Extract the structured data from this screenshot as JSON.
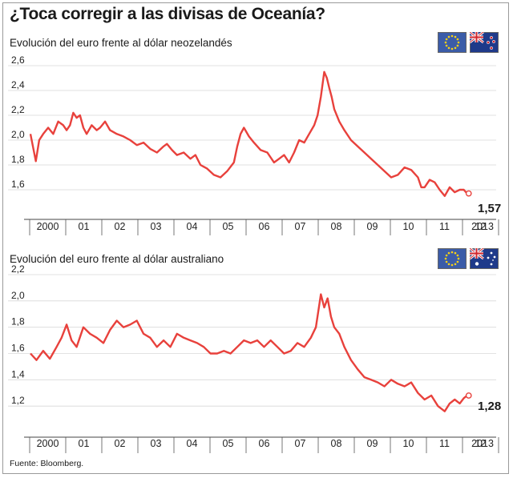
{
  "title": "¿Toca corregir a las divisas de Oceanía?",
  "source": "Fuente: Bloomberg.",
  "colors": {
    "line": "#e8413c",
    "frame": "#9a9a9a",
    "tick": "#444444"
  },
  "chart_data": [
    {
      "type": "line",
      "title": "Evolución del euro frente al dólar neozelandés",
      "flags": [
        "eu-flag-icon",
        "new-zealand-flag-icon"
      ],
      "x_ticks": [
        "2000",
        "01",
        "02",
        "03",
        "04",
        "05",
        "06",
        "07",
        "08",
        "09",
        "10",
        "11",
        "12",
        "2013"
      ],
      "y_ticks": [
        "2,6",
        "2,4",
        "2,2",
        "2,0",
        "1,8",
        "1,6"
      ],
      "ylim": [
        1.4,
        2.6
      ],
      "xlim": [
        1999.92,
        2013.0
      ],
      "end_value": "1,57",
      "series": [
        {
          "x": [
            1999.92,
            2000.08,
            2000.18,
            2000.3,
            2000.45,
            2000.6,
            2000.75,
            2000.9,
            2001.0,
            2001.1,
            2001.2,
            2001.3,
            2001.4,
            2001.5,
            2001.6,
            2001.75,
            2001.9,
            2002.0,
            2002.15,
            2002.3,
            2002.5,
            2002.7,
            2002.9,
            2003.1,
            2003.3,
            2003.5,
            2003.7,
            2003.9,
            2004.0,
            2004.15,
            2004.3,
            2004.5,
            2004.7,
            2004.85,
            2005.0,
            2005.2,
            2005.4,
            2005.6,
            2005.8,
            2006.0,
            2006.1,
            2006.2,
            2006.3,
            2006.45,
            2006.6,
            2006.8,
            2007.0,
            2007.2,
            2007.35,
            2007.5,
            2007.65,
            2007.8,
            2007.95,
            2008.1,
            2008.25,
            2008.4,
            2008.5,
            2008.6,
            2008.7,
            2008.78,
            2008.85,
            2008.92,
            2009.0,
            2009.15,
            2009.3,
            2009.5,
            2009.7,
            2009.9,
            2010.1,
            2010.3,
            2010.5,
            2010.7,
            2010.9,
            2011.1,
            2011.3,
            2011.5,
            2011.6,
            2011.7,
            2011.85,
            2012.0,
            2012.15,
            2012.3,
            2012.45,
            2012.6,
            2012.75,
            2012.87,
            2012.97
          ],
          "y": [
            2.05,
            1.83,
            2.0,
            2.05,
            2.1,
            2.05,
            2.15,
            2.12,
            2.08,
            2.12,
            2.22,
            2.18,
            2.2,
            2.1,
            2.05,
            2.12,
            2.08,
            2.1,
            2.15,
            2.08,
            2.05,
            2.03,
            2.0,
            1.96,
            1.98,
            1.93,
            1.9,
            1.95,
            1.97,
            1.92,
            1.88,
            1.9,
            1.85,
            1.88,
            1.8,
            1.77,
            1.72,
            1.7,
            1.75,
            1.82,
            1.95,
            2.05,
            2.1,
            2.03,
            1.98,
            1.92,
            1.9,
            1.82,
            1.85,
            1.88,
            1.82,
            1.9,
            2.0,
            1.98,
            2.05,
            2.12,
            2.2,
            2.35,
            2.55,
            2.5,
            2.42,
            2.35,
            2.25,
            2.15,
            2.08,
            2.0,
            1.95,
            1.9,
            1.85,
            1.8,
            1.75,
            1.7,
            1.72,
            1.78,
            1.76,
            1.7,
            1.62,
            1.62,
            1.68,
            1.66,
            1.6,
            1.55,
            1.62,
            1.58,
            1.6,
            1.6,
            1.57
          ]
        }
      ]
    },
    {
      "type": "line",
      "title": "Evolución del euro frente al dólar australiano",
      "flags": [
        "eu-flag-icon",
        "australia-flag-icon"
      ],
      "x_ticks": [
        "2000",
        "01",
        "02",
        "03",
        "04",
        "05",
        "06",
        "07",
        "08",
        "09",
        "10",
        "11",
        "12",
        "2013"
      ],
      "y_ticks": [
        "2,2",
        "2,0",
        "1,8",
        "1,6",
        "1,4",
        "1,2"
      ],
      "ylim": [
        1.0,
        2.2
      ],
      "xlim": [
        1999.92,
        2013.0
      ],
      "end_value": "1,28",
      "series": [
        {
          "x": [
            1999.92,
            2000.1,
            2000.3,
            2000.5,
            2000.7,
            2000.85,
            2001.0,
            2001.15,
            2001.3,
            2001.5,
            2001.7,
            2001.9,
            2002.1,
            2002.3,
            2002.5,
            2002.7,
            2002.9,
            2003.1,
            2003.3,
            2003.5,
            2003.7,
            2003.9,
            2004.1,
            2004.3,
            2004.5,
            2004.7,
            2004.9,
            2005.1,
            2005.3,
            2005.5,
            2005.7,
            2005.9,
            2006.1,
            2006.3,
            2006.5,
            2006.7,
            2006.9,
            2007.1,
            2007.3,
            2007.5,
            2007.7,
            2007.9,
            2008.1,
            2008.3,
            2008.45,
            2008.6,
            2008.7,
            2008.8,
            2008.9,
            2009.0,
            2009.15,
            2009.3,
            2009.5,
            2009.7,
            2009.9,
            2010.1,
            2010.3,
            2010.5,
            2010.7,
            2010.9,
            2011.1,
            2011.3,
            2011.5,
            2011.7,
            2011.9,
            2012.1,
            2012.3,
            2012.45,
            2012.6,
            2012.75,
            2012.87,
            2012.97
          ],
          "y": [
            1.6,
            1.55,
            1.62,
            1.56,
            1.65,
            1.72,
            1.82,
            1.7,
            1.65,
            1.8,
            1.75,
            1.72,
            1.68,
            1.78,
            1.85,
            1.8,
            1.82,
            1.85,
            1.75,
            1.72,
            1.65,
            1.7,
            1.65,
            1.75,
            1.72,
            1.7,
            1.68,
            1.65,
            1.6,
            1.6,
            1.62,
            1.6,
            1.65,
            1.7,
            1.68,
            1.7,
            1.65,
            1.7,
            1.65,
            1.6,
            1.62,
            1.68,
            1.65,
            1.72,
            1.8,
            2.05,
            1.95,
            2.02,
            1.88,
            1.8,
            1.75,
            1.65,
            1.55,
            1.48,
            1.42,
            1.4,
            1.38,
            1.35,
            1.4,
            1.37,
            1.35,
            1.38,
            1.3,
            1.25,
            1.28,
            1.2,
            1.16,
            1.22,
            1.25,
            1.22,
            1.26,
            1.28
          ]
        }
      ]
    }
  ]
}
